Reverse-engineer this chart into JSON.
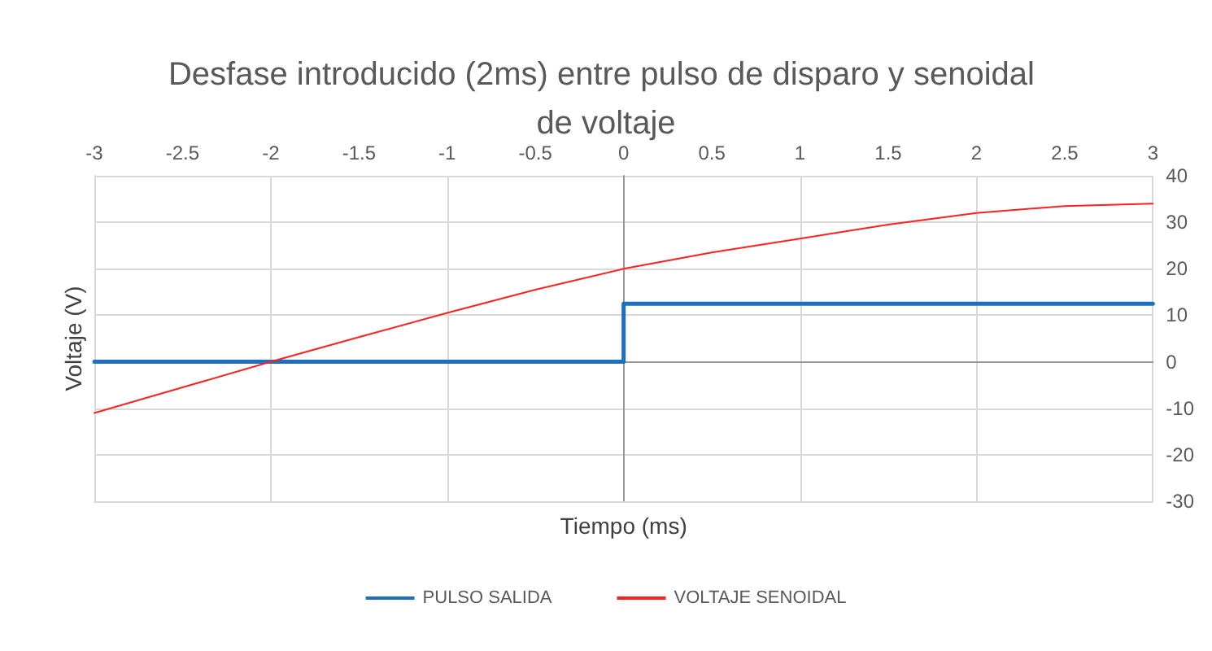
{
  "chart_data": {
    "type": "line",
    "title": "Desfase introducido (2ms) entre pulso de disparo y senoidal de voltaje",
    "xlabel": "Tiempo (ms)",
    "ylabel": "Voltaje (V)",
    "xlim": [
      -3,
      3
    ],
    "xticks": [
      -3,
      -2.5,
      -2,
      -1.5,
      -1,
      -0.5,
      0,
      0.5,
      1,
      1.5,
      2,
      2.5,
      3
    ],
    "ylim": [
      -30,
      40
    ],
    "yticks": [
      -30,
      -20,
      -10,
      0,
      10,
      20,
      30,
      40
    ],
    "grid": true,
    "legend": "bottom",
    "marker": "none",
    "series": [
      {
        "name": "PULSO SALIDA",
        "color": "#1f6fbf",
        "x": [
          -3,
          0,
          0,
          3
        ],
        "values": [
          0,
          0,
          12.5,
          12.5
        ]
      },
      {
        "name": "VOLTAJE SENOIDAL",
        "color": "#ff2020",
        "x": [
          -3,
          -2.5,
          -2,
          -1.5,
          -1,
          -0.5,
          0,
          0.5,
          1,
          1.5,
          2,
          2.5,
          3
        ],
        "values": [
          -11,
          -5.5,
          0,
          5.3,
          10.5,
          15.5,
          20,
          23.5,
          26.5,
          29.5,
          32,
          33.5,
          34
        ]
      }
    ]
  }
}
